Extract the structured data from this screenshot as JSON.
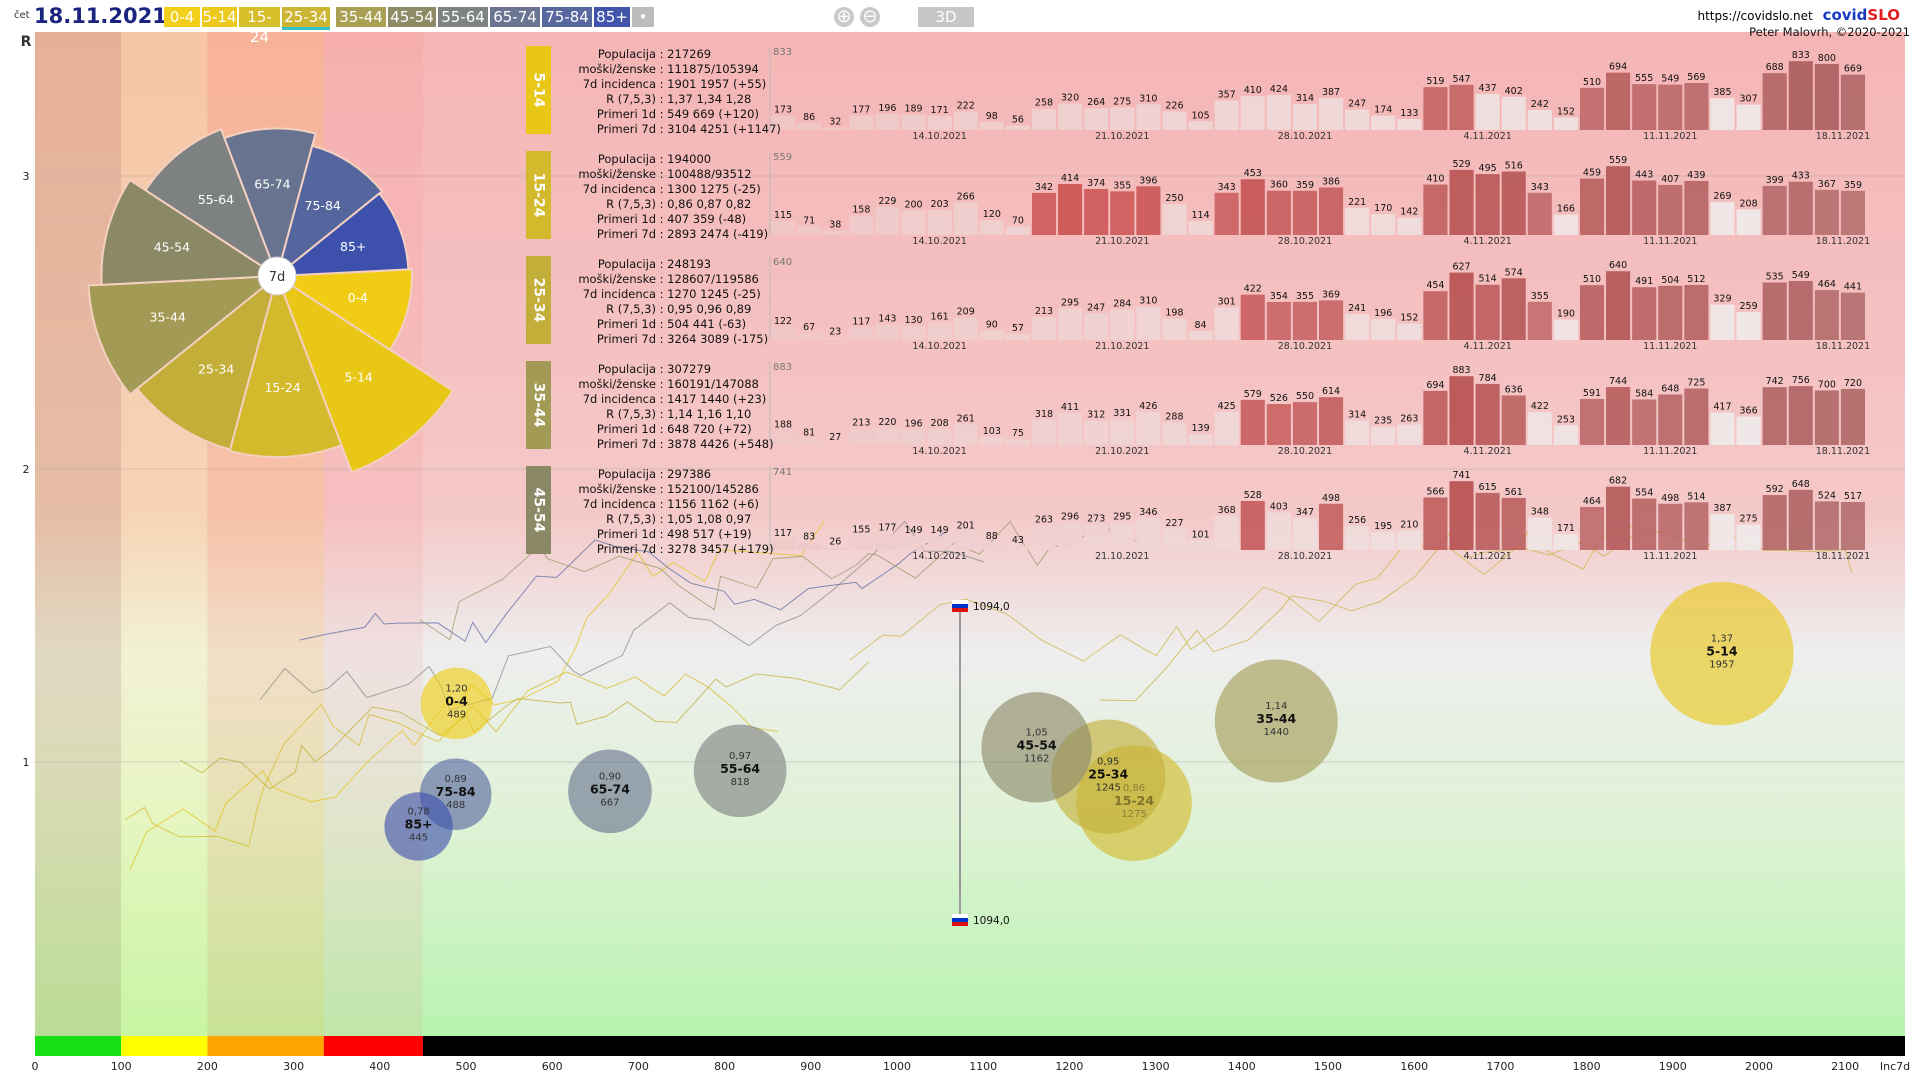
{
  "header": {
    "day": "čet",
    "date": "18.11.2021",
    "url": "https://covidslo.net",
    "brand_a": "covid",
    "brand_b": "SLO",
    "author": "Peter Malovrh, ©2020-2021",
    "btn_3d": "3D"
  },
  "age_buttons": [
    {
      "label": "0-4",
      "color": "#f2cf1a",
      "active": false
    },
    {
      "label": "5-14",
      "color": "#ecc91c",
      "active": false
    },
    {
      "label": "15-24",
      "color": "#d6bd2a",
      "active": false
    },
    {
      "label": "25-34",
      "color": "#cbb533",
      "active": true
    },
    {
      "label": "35-44",
      "color": "#a9a054",
      "active": false
    },
    {
      "label": "45-54",
      "color": "#8e8b67",
      "active": false
    },
    {
      "label": "55-64",
      "color": "#7f8282",
      "active": false
    },
    {
      "label": "65-74",
      "color": "#6a7591",
      "active": false
    },
    {
      "label": "75-84",
      "color": "#58689f",
      "active": false
    },
    {
      "label": "85+",
      "color": "#4254aa",
      "active": false
    },
    {
      "label": "•",
      "color": "#bcbcbc",
      "active": false
    }
  ],
  "axes": {
    "y_title": "R",
    "x_title": "Inc7d",
    "y_ticks": [
      "3",
      "2",
      "1"
    ],
    "x_ticks": [
      "0",
      "100",
      "200",
      "300",
      "400",
      "500",
      "600",
      "700",
      "800",
      "900",
      "1000",
      "1100",
      "1200",
      "1300",
      "1400",
      "1500",
      "1600",
      "1700",
      "1800",
      "1900",
      "2000",
      "2100"
    ]
  },
  "pie": {
    "center_label": "7d",
    "slices": [
      {
        "label": "0-4",
        "color": "#f0cd14",
        "value": 489
      },
      {
        "label": "5-14",
        "color": "#e9c717",
        "value": 1957
      },
      {
        "label": "15-24",
        "color": "#d3ba2c",
        "value": 1275
      },
      {
        "label": "25-34",
        "color": "#c3ae39",
        "value": 1245
      },
      {
        "label": "35-44",
        "color": "#a39b55",
        "value": 1440
      },
      {
        "label": "45-54",
        "color": "#8b8866",
        "value": 1162
      },
      {
        "label": "55-64",
        "color": "#7e8181",
        "value": 818
      },
      {
        "label": "65-74",
        "color": "#67738f",
        "value": 667
      },
      {
        "label": "75-84",
        "color": "#55669f",
        "value": 488
      },
      {
        "label": "85+",
        "color": "#3d51ac",
        "value": 445
      }
    ]
  },
  "slovenia_markers": [
    {
      "value": "1094,0"
    },
    {
      "value": "1094,0"
    }
  ],
  "panels": [
    {
      "age": "5-14",
      "tab_color": "#e9c717",
      "info": [
        [
          "Populacija",
          "217269"
        ],
        [
          "moški/ženske",
          "111875/105394"
        ],
        [
          "7d incidenca",
          "1901 1957 (+55)"
        ],
        [
          "R (7,5,3)",
          "1,37 1,34 1,28"
        ],
        [
          "Primeri 1d",
          "549 669 (+120)"
        ],
        [
          "Primeri 7d",
          "3104 4251 (+1147)"
        ]
      ],
      "max_label": "833",
      "values": [
        173,
        86,
        32,
        177,
        196,
        189,
        171,
        222,
        98,
        56,
        258,
        320,
        264,
        275,
        310,
        226,
        105,
        357,
        410,
        424,
        314,
        387,
        247,
        174,
        133,
        519,
        547,
        437,
        402,
        242,
        152,
        510,
        694,
        555,
        549,
        569,
        385,
        307,
        688,
        833,
        800,
        669
      ],
      "dates": [
        "14.10.2021",
        "21.10.2021",
        "28.10.2021",
        "4.11.2021",
        "11.11.2021",
        "18.11.2021"
      ]
    },
    {
      "age": "15-24",
      "tab_color": "#d3ba2c",
      "info": [
        [
          "Populacija",
          "194000"
        ],
        [
          "moški/ženske",
          "100488/93512"
        ],
        [
          "7d incidenca",
          "1300 1275 (-25)"
        ],
        [
          "R (7,5,3)",
          "0,86 0,87 0,82"
        ],
        [
          "Primeri 1d",
          "407 359 (-48)"
        ],
        [
          "Primeri 7d",
          "2893 2474 (-419)"
        ]
      ],
      "max_label": "559",
      "values": [
        115,
        71,
        38,
        158,
        229,
        200,
        203,
        266,
        120,
        70,
        342,
        414,
        374,
        355,
        396,
        250,
        114,
        343,
        453,
        360,
        359,
        386,
        221,
        170,
        142,
        410,
        529,
        495,
        516,
        343,
        166,
        459,
        559,
        443,
        407,
        439,
        269,
        208,
        399,
        433,
        367,
        359
      ],
      "dates": [
        "14.10.2021",
        "21.10.2021",
        "28.10.2021",
        "4.11.2021",
        "11.11.2021",
        "18.11.2021"
      ]
    },
    {
      "age": "25-34",
      "tab_color": "#c3ae39",
      "info": [
        [
          "Populacija",
          "248193"
        ],
        [
          "moški/ženske",
          "128607/119586"
        ],
        [
          "7d incidenca",
          "1270 1245 (-25)"
        ],
        [
          "R (7,5,3)",
          "0,95 0,96 0,89"
        ],
        [
          "Primeri 1d",
          "504 441 (-63)"
        ],
        [
          "Primeri 7d",
          "3264 3089 (-175)"
        ]
      ],
      "max_label": "640",
      "values": [
        122,
        67,
        23,
        117,
        143,
        130,
        161,
        209,
        90,
        57,
        213,
        295,
        247,
        284,
        310,
        198,
        84,
        301,
        422,
        354,
        355,
        369,
        241,
        196,
        152,
        454,
        627,
        514,
        574,
        355,
        190,
        510,
        640,
        491,
        504,
        512,
        329,
        259,
        535,
        549,
        464,
        441
      ],
      "dates": [
        "14.10.2021",
        "21.10.2021",
        "28.10.2021",
        "4.11.2021",
        "11.11.2021",
        "18.11.2021"
      ]
    },
    {
      "age": "35-44",
      "tab_color": "#a39b55",
      "info": [
        [
          "Populacija",
          "307279"
        ],
        [
          "moški/ženske",
          "160191/147088"
        ],
        [
          "7d incidenca",
          "1417 1440 (+23)"
        ],
        [
          "R (7,5,3)",
          "1,14 1,16 1,10"
        ],
        [
          "Primeri 1d",
          "648 720 (+72)"
        ],
        [
          "Primeri 7d",
          "3878 4426 (+548)"
        ]
      ],
      "max_label": "883",
      "values": [
        188,
        81,
        27,
        213,
        220,
        196,
        208,
        261,
        103,
        75,
        318,
        411,
        312,
        331,
        426,
        288,
        139,
        425,
        579,
        526,
        550,
        614,
        314,
        235,
        263,
        694,
        883,
        784,
        636,
        422,
        253,
        591,
        744,
        584,
        648,
        725,
        417,
        366,
        742,
        756,
        700,
        720
      ],
      "dates": [
        "14.10.2021",
        "21.10.2021",
        "28.10.2021",
        "4.11.2021",
        "11.11.2021",
        "18.11.2021"
      ]
    },
    {
      "age": "45-54",
      "tab_color": "#8b8866",
      "info": [
        [
          "Populacija",
          "297386"
        ],
        [
          "moški/ženske",
          "152100/145286"
        ],
        [
          "7d incidenca",
          "1156 1162 (+6)"
        ],
        [
          "R (7,5,3)",
          "1,05 1,08 0,97"
        ],
        [
          "Primeri 1d",
          "498 517 (+19)"
        ],
        [
          "Primeri 7d",
          "3278 3457 (+179)"
        ]
      ],
      "max_label": "741",
      "values": [
        117,
        83,
        26,
        155,
        177,
        149,
        149,
        201,
        88,
        43,
        263,
        296,
        273,
        295,
        346,
        227,
        101,
        368,
        528,
        403,
        347,
        498,
        256,
        195,
        210,
        566,
        741,
        615,
        561,
        348,
        171,
        464,
        682,
        554,
        498,
        514,
        387,
        275,
        592,
        648,
        524,
        517
      ],
      "dates": [
        "14.10.2021",
        "21.10.2021",
        "28.10.2021",
        "4.11.2021",
        "11.11.2021",
        "18.11.2021"
      ]
    }
  ],
  "chart_data": {
    "type": "scatter",
    "title": "",
    "xlabel": "Inc7d",
    "ylabel": "R",
    "xlim": [
      0,
      2200
    ],
    "ylim": [
      0,
      3.5
    ],
    "bubbles": [
      {
        "age": "0-4",
        "x": 489,
        "r": 1.2,
        "color": "#f0cd14"
      },
      {
        "age": "5-14",
        "x": 1957,
        "r": 1.37,
        "color": "#e9c717"
      },
      {
        "age": "15-24",
        "x": 1275,
        "r": 0.86,
        "color": "#d3ba2c"
      },
      {
        "age": "25-34",
        "x": 1245,
        "r": 0.95,
        "color": "#c3ae39"
      },
      {
        "age": "35-44",
        "x": 1440,
        "r": 1.14,
        "color": "#a39b55"
      },
      {
        "age": "45-54",
        "x": 1162,
        "r": 1.05,
        "color": "#8b8866"
      },
      {
        "age": "55-64",
        "x": 818,
        "r": 0.97,
        "color": "#7e8181"
      },
      {
        "age": "65-74",
        "x": 667,
        "r": 0.9,
        "color": "#67738f"
      },
      {
        "age": "75-84",
        "x": 488,
        "r": 0.89,
        "color": "#55669f"
      },
      {
        "age": "85+",
        "x": 445,
        "r": 0.78,
        "color": "#3d51ac"
      }
    ],
    "bubble_values": [
      {
        "age": "0-4",
        "r_label": "1,20",
        "inc_label": "489"
      },
      {
        "age": "5-14",
        "r_label": "1,37",
        "inc_label": "1957"
      },
      {
        "age": "15-24",
        "r_label": "0,86",
        "inc_label": "1275"
      },
      {
        "age": "25-34",
        "r_label": "0,95",
        "inc_label": "1245"
      },
      {
        "age": "35-44",
        "r_label": "1,14",
        "inc_label": "1440"
      },
      {
        "age": "45-54",
        "r_label": "1,05",
        "inc_label": "1162"
      },
      {
        "age": "55-64",
        "r_label": "0,97",
        "inc_label": "818"
      },
      {
        "age": "65-74",
        "r_label": "0,90",
        "inc_label": "667"
      },
      {
        "age": "75-84",
        "r_label": "0,89",
        "inc_label": "488"
      },
      {
        "age": "85+",
        "r_label": "0,78",
        "inc_label": "445"
      }
    ],
    "threshold_colors": [
      "#17e017",
      "#ffff00",
      "#ffa500",
      "#ff0000",
      "#000000"
    ],
    "thresholds": [
      0,
      100,
      200,
      335,
      450,
      2200
    ],
    "grid": true
  }
}
